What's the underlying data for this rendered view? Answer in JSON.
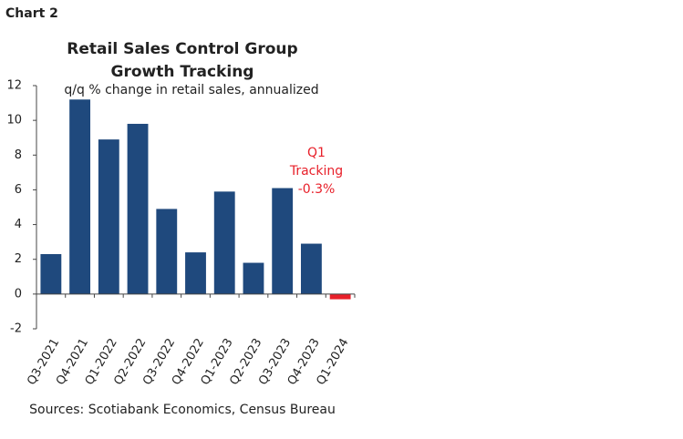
{
  "header": "Chart 2",
  "chart_data": {
    "type": "bar",
    "title": [
      "Retail Sales Control Group",
      "Growth Tracking"
    ],
    "subtitle": "q/q % change in retail sales, annualized",
    "annotation": [
      "Q1",
      "Tracking",
      "-0.3%"
    ],
    "annotation_color": "#e8202a",
    "categories": [
      "Q3-2021",
      "Q4-2021",
      "Q1-2022",
      "Q2-2022",
      "Q3-2022",
      "Q4-2022",
      "Q1-2023",
      "Q2-2023",
      "Q3-2023",
      "Q4-2023",
      "Q1-2024"
    ],
    "values": [
      2.3,
      11.2,
      8.9,
      9.8,
      4.9,
      2.4,
      5.9,
      1.8,
      6.1,
      2.9,
      -0.3
    ],
    "colors": [
      "#1f497d",
      "#1f497d",
      "#1f497d",
      "#1f497d",
      "#1f497d",
      "#1f497d",
      "#1f497d",
      "#1f497d",
      "#1f497d",
      "#1f497d",
      "#e8202a"
    ],
    "ylim": [
      -2,
      12
    ],
    "yticks": [
      -2,
      0,
      2,
      4,
      6,
      8,
      10,
      12
    ],
    "grid": false,
    "source": "Sources: Scotiabank Economics, Census Bureau"
  }
}
